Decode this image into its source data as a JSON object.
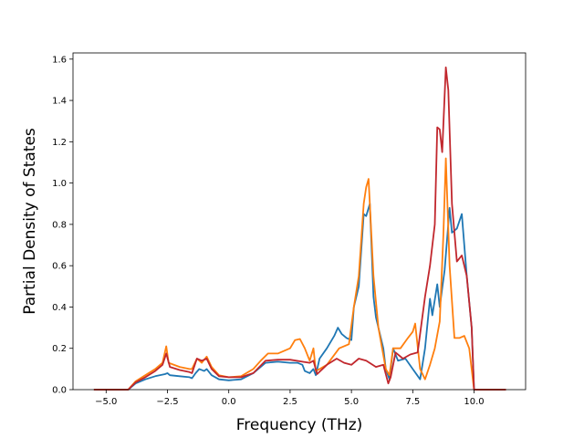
{
  "chart_data": {
    "type": "line",
    "xlabel": "Frequency (THz)",
    "ylabel": "Partial Density of States",
    "xlim": [
      -6.35,
      12.1
    ],
    "ylim": [
      0,
      1.63
    ],
    "xticks": [
      -5.0,
      -2.5,
      0.0,
      2.5,
      5.0,
      7.5,
      10.0
    ],
    "xtick_labels": [
      "−5.0",
      "−2.5",
      "0.0",
      "2.5",
      "5.0",
      "7.5",
      "10.0"
    ],
    "yticks": [
      0.0,
      0.2,
      0.4,
      0.6,
      0.8,
      1.0,
      1.2,
      1.4,
      1.6
    ],
    "ytick_labels": [
      "0.0",
      "0.2",
      "0.4",
      "0.6",
      "0.8",
      "1.0",
      "1.2",
      "1.4",
      "1.6"
    ],
    "grid": false,
    "series": [
      {
        "color": "#1f77b4",
        "points": [
          [
            -5.5,
            0
          ],
          [
            -4.1,
            0
          ],
          [
            -3.8,
            0.03
          ],
          [
            -3.4,
            0.05
          ],
          [
            -3.0,
            0.065
          ],
          [
            -2.6,
            0.075
          ],
          [
            -2.5,
            0.08
          ],
          [
            -2.4,
            0.07
          ],
          [
            -2.0,
            0.065
          ],
          [
            -1.6,
            0.06
          ],
          [
            -1.5,
            0.055
          ],
          [
            -1.35,
            0.08
          ],
          [
            -1.2,
            0.1
          ],
          [
            -1.0,
            0.09
          ],
          [
            -0.9,
            0.1
          ],
          [
            -0.7,
            0.07
          ],
          [
            -0.4,
            0.05
          ],
          [
            0,
            0.045
          ],
          [
            0.5,
            0.05
          ],
          [
            1.0,
            0.08
          ],
          [
            1.5,
            0.13
          ],
          [
            2.0,
            0.135
          ],
          [
            2.5,
            0.13
          ],
          [
            2.8,
            0.13
          ],
          [
            3.0,
            0.12
          ],
          [
            3.1,
            0.09
          ],
          [
            3.3,
            0.08
          ],
          [
            3.45,
            0.1
          ],
          [
            3.55,
            0.07
          ],
          [
            3.7,
            0.15
          ],
          [
            4.0,
            0.2
          ],
          [
            4.3,
            0.26
          ],
          [
            4.45,
            0.3
          ],
          [
            4.6,
            0.27
          ],
          [
            4.8,
            0.25
          ],
          [
            5.0,
            0.24
          ],
          [
            5.1,
            0.4
          ],
          [
            5.3,
            0.5
          ],
          [
            5.5,
            0.85
          ],
          [
            5.6,
            0.84
          ],
          [
            5.75,
            0.9
          ],
          [
            5.9,
            0.45
          ],
          [
            6.0,
            0.35
          ],
          [
            6.3,
            0.2
          ],
          [
            6.4,
            0.1
          ],
          [
            6.55,
            0.05
          ],
          [
            6.7,
            0.2
          ],
          [
            6.9,
            0.14
          ],
          [
            7.2,
            0.15
          ],
          [
            7.5,
            0.1
          ],
          [
            7.8,
            0.05
          ],
          [
            8.0,
            0.2
          ],
          [
            8.2,
            0.44
          ],
          [
            8.3,
            0.36
          ],
          [
            8.5,
            0.51
          ],
          [
            8.6,
            0.4
          ],
          [
            8.8,
            0.58
          ],
          [
            9.0,
            0.88
          ],
          [
            9.1,
            0.76
          ],
          [
            9.3,
            0.78
          ],
          [
            9.5,
            0.85
          ],
          [
            9.7,
            0.55
          ],
          [
            9.9,
            0.3
          ],
          [
            10.0,
            0
          ],
          [
            11.3,
            0
          ]
        ]
      },
      {
        "color": "#ff7f0e",
        "points": [
          [
            -5.5,
            0
          ],
          [
            -4.1,
            0
          ],
          [
            -3.8,
            0.04
          ],
          [
            -3.4,
            0.07
          ],
          [
            -3.0,
            0.1
          ],
          [
            -2.7,
            0.13
          ],
          [
            -2.55,
            0.21
          ],
          [
            -2.45,
            0.13
          ],
          [
            -2.0,
            0.11
          ],
          [
            -1.6,
            0.1
          ],
          [
            -1.5,
            0.1
          ],
          [
            -1.3,
            0.15
          ],
          [
            -1.1,
            0.13
          ],
          [
            -0.9,
            0.16
          ],
          [
            -0.7,
            0.11
          ],
          [
            -0.4,
            0.07
          ],
          [
            0,
            0.06
          ],
          [
            0.5,
            0.065
          ],
          [
            1.0,
            0.1
          ],
          [
            1.3,
            0.14
          ],
          [
            1.6,
            0.175
          ],
          [
            2.0,
            0.175
          ],
          [
            2.5,
            0.2
          ],
          [
            2.7,
            0.24
          ],
          [
            2.9,
            0.245
          ],
          [
            3.1,
            0.2
          ],
          [
            3.3,
            0.14
          ],
          [
            3.45,
            0.2
          ],
          [
            3.55,
            0.09
          ],
          [
            3.7,
            0.1
          ],
          [
            4.0,
            0.12
          ],
          [
            4.5,
            0.2
          ],
          [
            4.9,
            0.22
          ],
          [
            5.1,
            0.4
          ],
          [
            5.3,
            0.55
          ],
          [
            5.5,
            0.9
          ],
          [
            5.6,
            0.98
          ],
          [
            5.7,
            1.02
          ],
          [
            5.9,
            0.55
          ],
          [
            6.1,
            0.3
          ],
          [
            6.4,
            0.1
          ],
          [
            6.55,
            0.07
          ],
          [
            6.7,
            0.2
          ],
          [
            7.0,
            0.2
          ],
          [
            7.3,
            0.25
          ],
          [
            7.5,
            0.28
          ],
          [
            7.6,
            0.32
          ],
          [
            7.8,
            0.1
          ],
          [
            8.0,
            0.05
          ],
          [
            8.2,
            0.12
          ],
          [
            8.4,
            0.2
          ],
          [
            8.6,
            0.33
          ],
          [
            8.75,
            0.75
          ],
          [
            8.85,
            1.12
          ],
          [
            9.0,
            0.6
          ],
          [
            9.2,
            0.25
          ],
          [
            9.4,
            0.25
          ],
          [
            9.6,
            0.26
          ],
          [
            9.8,
            0.2
          ],
          [
            10.0,
            0
          ],
          [
            11.3,
            0
          ]
        ]
      },
      {
        "color": "#c1272d",
        "points": [
          [
            -5.5,
            0
          ],
          [
            -4.1,
            0
          ],
          [
            -3.8,
            0.035
          ],
          [
            -3.4,
            0.06
          ],
          [
            -3.0,
            0.09
          ],
          [
            -2.7,
            0.12
          ],
          [
            -2.55,
            0.175
          ],
          [
            -2.4,
            0.11
          ],
          [
            -2.0,
            0.095
          ],
          [
            -1.6,
            0.085
          ],
          [
            -1.5,
            0.08
          ],
          [
            -1.3,
            0.15
          ],
          [
            -1.1,
            0.14
          ],
          [
            -0.9,
            0.15
          ],
          [
            -0.7,
            0.1
          ],
          [
            -0.4,
            0.065
          ],
          [
            0,
            0.06
          ],
          [
            0.5,
            0.06
          ],
          [
            1.0,
            0.08
          ],
          [
            1.5,
            0.14
          ],
          [
            2.0,
            0.145
          ],
          [
            2.5,
            0.145
          ],
          [
            3.0,
            0.135
          ],
          [
            3.3,
            0.13
          ],
          [
            3.45,
            0.14
          ],
          [
            3.6,
            0.075
          ],
          [
            4.0,
            0.12
          ],
          [
            4.4,
            0.15
          ],
          [
            4.7,
            0.13
          ],
          [
            5.0,
            0.12
          ],
          [
            5.3,
            0.15
          ],
          [
            5.6,
            0.14
          ],
          [
            6.0,
            0.11
          ],
          [
            6.3,
            0.12
          ],
          [
            6.5,
            0.03
          ],
          [
            6.6,
            0.06
          ],
          [
            6.8,
            0.18
          ],
          [
            7.1,
            0.15
          ],
          [
            7.4,
            0.17
          ],
          [
            7.7,
            0.18
          ],
          [
            8.0,
            0.45
          ],
          [
            8.2,
            0.6
          ],
          [
            8.4,
            0.8
          ],
          [
            8.5,
            1.27
          ],
          [
            8.6,
            1.26
          ],
          [
            8.7,
            1.15
          ],
          [
            8.85,
            1.56
          ],
          [
            8.95,
            1.45
          ],
          [
            9.1,
            0.9
          ],
          [
            9.3,
            0.62
          ],
          [
            9.5,
            0.65
          ],
          [
            9.7,
            0.55
          ],
          [
            9.9,
            0.3
          ],
          [
            10.0,
            0
          ],
          [
            11.3,
            0
          ]
        ]
      }
    ]
  }
}
